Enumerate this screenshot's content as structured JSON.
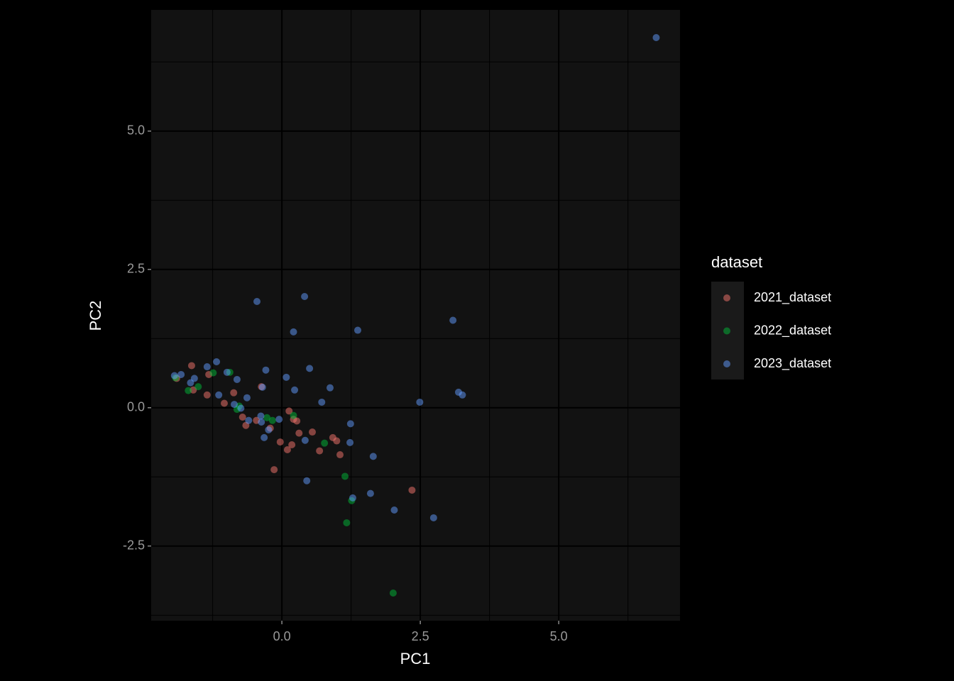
{
  "chart_data": {
    "type": "scatter",
    "x_label": "PC1",
    "y_label": "PC2",
    "legend_title": "dataset",
    "legend_position": "right",
    "xlim": [
      -2.36,
      7.19
    ],
    "ylim": [
      -3.85,
      7.19
    ],
    "xticks": [
      {
        "value": 0,
        "label": "0.0"
      },
      2.5,
      {
        "value": 5,
        "label": "5.0"
      }
    ],
    "yticks": [
      -2.5,
      {
        "value": 0,
        "label": "0.0"
      },
      2.5,
      {
        "value": 5,
        "label": "5.0"
      }
    ],
    "x_minor_ticks": [
      -1.25,
      1.25,
      3.75,
      6.25
    ],
    "y_minor_ticks": [
      -3.75,
      -1.25,
      1.25,
      3.75,
      6.25
    ],
    "grid": true,
    "series": [
      {
        "name": "2021_dataset",
        "color": "#F8766D",
        "x": [
          -1.63,
          -1.9,
          -1.6,
          -1.35,
          -1.32,
          -1.04,
          -0.87,
          -0.71,
          -0.65,
          -0.46,
          -0.37,
          -0.21,
          -0.14,
          -0.03,
          0.1,
          0.13,
          0.18,
          0.21,
          0.27,
          0.31,
          0.55,
          0.68,
          0.92,
          0.99,
          1.05,
          2.35
        ],
        "values": [
          0.76,
          0.53,
          0.32,
          0.23,
          0.6,
          0.08,
          0.27,
          -0.17,
          -0.32,
          -0.23,
          0.38,
          -0.37,
          -1.12,
          -0.62,
          -0.76,
          -0.06,
          -0.67,
          -0.21,
          -0.24,
          -0.46,
          -0.44,
          -0.78,
          -0.54,
          -0.6,
          -0.85,
          -1.49
        ]
      },
      {
        "name": "2022_dataset",
        "color": "#00BA38",
        "x": [
          -1.92,
          -1.69,
          -1.51,
          -1.24,
          -0.94,
          -0.81,
          -0.77,
          -0.27,
          -0.17,
          0.21,
          0.77,
          1.14,
          1.17,
          1.26,
          2.01
        ],
        "values": [
          0.54,
          0.31,
          0.38,
          0.63,
          0.64,
          -0.03,
          0.03,
          -0.18,
          -0.23,
          -0.14,
          -0.64,
          -1.24,
          -2.08,
          -1.68,
          -3.35
        ]
      },
      {
        "name": "2023_dataset",
        "color": "#619CFF",
        "x": [
          6.76,
          -0.45,
          0.41,
          0.21,
          1.37,
          3.09,
          3.19,
          3.26,
          2.49,
          0.5,
          0.87,
          0.72,
          0.08,
          0.23,
          -0.29,
          -0.35,
          -0.63,
          -0.81,
          -0.99,
          -1.18,
          -1.35,
          -1.14,
          -1.58,
          -1.65,
          -1.82,
          -1.94,
          -0.86,
          -0.74,
          -0.6,
          -0.38,
          -0.37,
          -0.32,
          -0.24,
          -0.05,
          0.42,
          0.45,
          1.24,
          1.23,
          1.65,
          1.28,
          1.6,
          2.03,
          2.74
        ],
        "values": [
          6.69,
          1.92,
          2.01,
          1.37,
          1.4,
          1.58,
          0.28,
          0.23,
          0.1,
          0.71,
          0.36,
          0.1,
          0.55,
          0.32,
          0.68,
          0.37,
          0.18,
          0.51,
          0.64,
          0.83,
          0.74,
          0.23,
          0.53,
          0.45,
          0.6,
          0.58,
          0.06,
          -0.01,
          -0.23,
          -0.15,
          -0.26,
          -0.54,
          -0.4,
          -0.21,
          -0.59,
          -1.32,
          -0.29,
          -0.63,
          -0.88,
          -1.63,
          -1.55,
          -1.85,
          -1.99
        ]
      }
    ]
  }
}
